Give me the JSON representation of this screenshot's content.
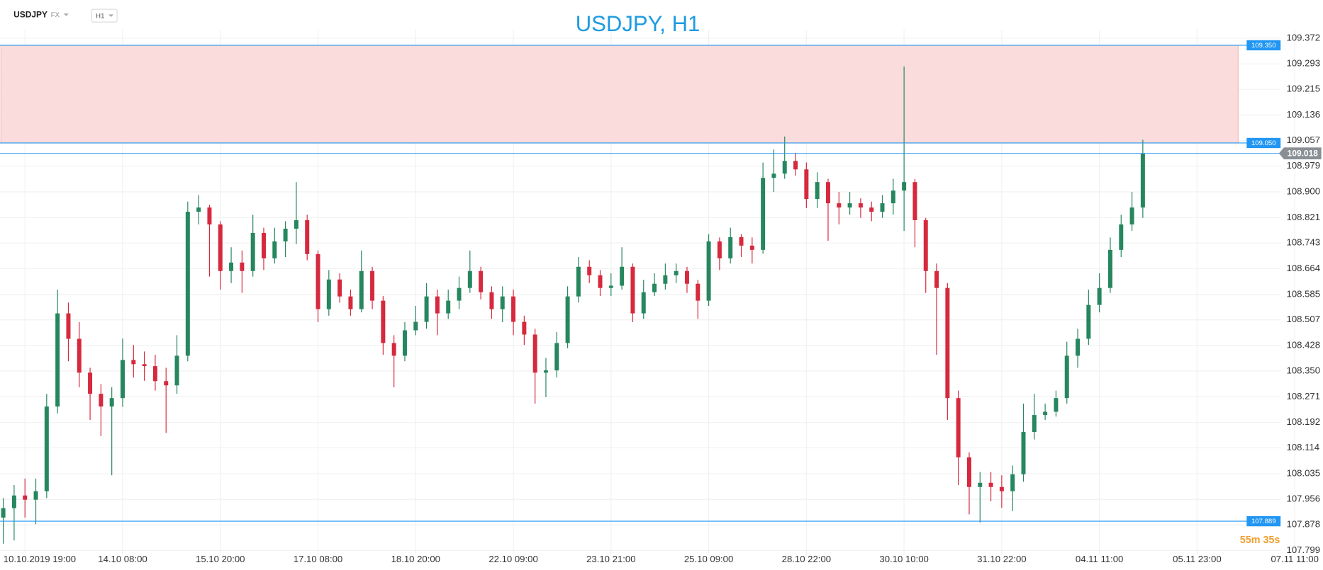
{
  "header": {
    "symbol": "USDJPY",
    "market": "FX",
    "timeframe": "H1"
  },
  "chart_data": {
    "type": "candlestick",
    "title": "USDJPY, H1",
    "up_color": "#26875f",
    "down_color": "#d6293e",
    "grid": true,
    "open": [
      107.9,
      107.929,
      107.968,
      107.955,
      107.981,
      108.241,
      108.527,
      108.449,
      108.345,
      108.28,
      108.241,
      108.267,
      108.384,
      108.371,
      108.365,
      108.319,
      108.306,
      108.397,
      108.839,
      108.852,
      108.8,
      108.657,
      108.683,
      108.657,
      108.774,
      108.696,
      108.748,
      108.787,
      108.813,
      108.709,
      108.54,
      108.631,
      108.579,
      108.54,
      108.657,
      108.566,
      108.436,
      108.397,
      108.475,
      108.501,
      108.579,
      108.527,
      108.566,
      108.605,
      108.657,
      108.592,
      108.54,
      108.579,
      108.501,
      108.462,
      108.345,
      108.352,
      108.436,
      108.579,
      108.67,
      108.644,
      108.605,
      108.612,
      108.67,
      108.527,
      108.592,
      108.618,
      108.644,
      108.657,
      108.618,
      108.566,
      108.748,
      108.696,
      108.761,
      108.735,
      108.722,
      108.943,
      108.956,
      108.995,
      108.969,
      108.878,
      108.93,
      108.865,
      108.852,
      108.865,
      108.852,
      108.839,
      108.865,
      108.904,
      108.93,
      108.813,
      108.657,
      108.605,
      108.267,
      108.085,
      107.994,
      108.007,
      107.994,
      107.981,
      108.033,
      108.163,
      108.215,
      108.225,
      108.267,
      108.397,
      108.449,
      108.553,
      108.605,
      108.722,
      108.8,
      108.852
    ],
    "high": [
      107.96,
      108.0,
      108.02,
      108.02,
      108.28,
      108.6,
      108.56,
      108.5,
      108.36,
      108.31,
      108.3,
      108.45,
      108.43,
      108.41,
      108.4,
      108.36,
      108.46,
      108.87,
      108.89,
      108.86,
      108.81,
      108.73,
      108.72,
      108.83,
      108.79,
      108.79,
      108.81,
      108.93,
      108.83,
      108.72,
      108.66,
      108.65,
      108.6,
      108.72,
      108.67,
      108.58,
      108.46,
      108.5,
      108.55,
      108.62,
      108.6,
      108.6,
      108.64,
      108.72,
      108.67,
      108.61,
      108.61,
      108.6,
      108.52,
      108.48,
      108.39,
      108.47,
      108.61,
      108.7,
      108.69,
      108.66,
      108.65,
      108.73,
      108.68,
      108.63,
      108.65,
      108.68,
      108.68,
      108.67,
      108.63,
      108.77,
      108.76,
      108.79,
      108.77,
      108.76,
      108.99,
      109.03,
      109.07,
      109.02,
      108.99,
      108.96,
      108.94,
      108.9,
      108.9,
      108.88,
      108.87,
      108.89,
      108.94,
      109.285,
      108.94,
      108.82,
      108.68,
      108.62,
      108.29,
      108.1,
      108.04,
      108.04,
      108.03,
      108.06,
      108.25,
      108.28,
      108.25,
      108.29,
      108.44,
      108.48,
      108.6,
      108.65,
      108.76,
      108.83,
      108.9,
      109.06
    ],
    "low": [
      107.82,
      107.83,
      107.9,
      107.88,
      107.96,
      108.22,
      108.38,
      108.3,
      108.2,
      108.15,
      108.03,
      108.24,
      108.33,
      108.32,
      108.29,
      108.16,
      108.28,
      108.38,
      108.8,
      108.64,
      108.6,
      108.62,
      108.59,
      108.64,
      108.66,
      108.68,
      108.7,
      108.74,
      108.69,
      108.5,
      108.52,
      108.56,
      108.52,
      108.53,
      108.54,
      108.4,
      108.3,
      108.38,
      108.46,
      108.48,
      108.46,
      108.51,
      108.54,
      108.59,
      108.57,
      108.51,
      108.5,
      108.46,
      108.43,
      108.25,
      108.27,
      108.33,
      108.42,
      108.56,
      108.62,
      108.58,
      108.58,
      108.6,
      108.5,
      108.51,
      108.58,
      108.6,
      108.62,
      108.59,
      108.51,
      108.55,
      108.66,
      108.68,
      108.7,
      108.68,
      108.71,
      108.9,
      108.94,
      108.95,
      108.85,
      108.85,
      108.75,
      108.8,
      108.83,
      108.82,
      108.81,
      108.82,
      108.83,
      108.78,
      108.73,
      108.59,
      108.4,
      108.2,
      108.0,
      107.91,
      107.885,
      107.95,
      107.93,
      107.92,
      108.01,
      108.14,
      108.2,
      108.21,
      108.25,
      108.36,
      108.43,
      108.53,
      108.59,
      108.7,
      108.78,
      108.82
    ],
    "close": [
      107.929,
      107.968,
      107.955,
      107.981,
      108.241,
      108.527,
      108.449,
      108.345,
      108.28,
      108.241,
      108.267,
      108.384,
      108.371,
      108.365,
      108.319,
      108.306,
      108.397,
      108.839,
      108.852,
      108.8,
      108.657,
      108.683,
      108.657,
      108.774,
      108.696,
      108.748,
      108.787,
      108.813,
      108.709,
      108.54,
      108.631,
      108.579,
      108.54,
      108.657,
      108.566,
      108.436,
      108.397,
      108.475,
      108.501,
      108.579,
      108.527,
      108.566,
      108.605,
      108.657,
      108.592,
      108.54,
      108.579,
      108.501,
      108.462,
      108.345,
      108.352,
      108.436,
      108.579,
      108.67,
      108.644,
      108.605,
      108.612,
      108.67,
      108.527,
      108.592,
      108.618,
      108.644,
      108.657,
      108.618,
      108.566,
      108.748,
      108.696,
      108.761,
      108.735,
      108.722,
      108.943,
      108.956,
      108.995,
      108.969,
      108.878,
      108.93,
      108.865,
      108.852,
      108.865,
      108.852,
      108.839,
      108.865,
      108.904,
      108.93,
      108.813,
      108.657,
      108.605,
      108.267,
      108.085,
      107.994,
      108.007,
      107.994,
      107.981,
      108.033,
      108.163,
      108.215,
      108.225,
      108.267,
      108.397,
      108.449,
      108.553,
      108.605,
      108.722,
      108.8,
      108.852,
      109.018
    ],
    "xlim": [
      -0.3,
      121.6
    ],
    "xticks": [
      {
        "value": 2,
        "label": "10.10.2019  19:00"
      },
      {
        "value": 11,
        "label": "14.10  08:00"
      },
      {
        "value": 20,
        "label": "15.10  20:00"
      },
      {
        "value": 29,
        "label": "17.10  08:00"
      },
      {
        "value": 38,
        "label": "18.10  20:00"
      },
      {
        "value": 47,
        "label": "22.10  09:00"
      },
      {
        "value": 56,
        "label": "23.10  21:00"
      },
      {
        "value": 65,
        "label": "25.10  09:00"
      },
      {
        "value": 74,
        "label": "28.10  22:00"
      },
      {
        "value": 83,
        "label": "30.10  10:00"
      },
      {
        "value": 92,
        "label": "31.10  22:00"
      },
      {
        "value": 101,
        "label": "04.11  11:00"
      },
      {
        "value": 110,
        "label": "05.11  23:00"
      },
      {
        "value": 119,
        "label": "07.11  11:00"
      }
    ],
    "ylim": [
      107.786,
      109.398
    ],
    "yticks": [
      107.799,
      107.878,
      107.956,
      108.035,
      108.114,
      108.192,
      108.271,
      {
        "value": 108.35,
        "label": "108.350"
      },
      108.428,
      108.507,
      108.585,
      108.664,
      108.743,
      108.821,
      {
        "value": 108.9,
        "label": "108.900"
      },
      108.979,
      109.057,
      109.136,
      109.215,
      109.293,
      109.372
    ],
    "zone": {
      "from": 109.05,
      "to": 109.35,
      "color": "#fadcdc"
    },
    "levels": [
      {
        "value": 109.35,
        "label": "109.350"
      },
      {
        "value": 109.05,
        "label": "109.050"
      },
      107.889
    ],
    "level_color": "#2196f3",
    "last_price": 109.018,
    "countdown": "55m 35s"
  }
}
